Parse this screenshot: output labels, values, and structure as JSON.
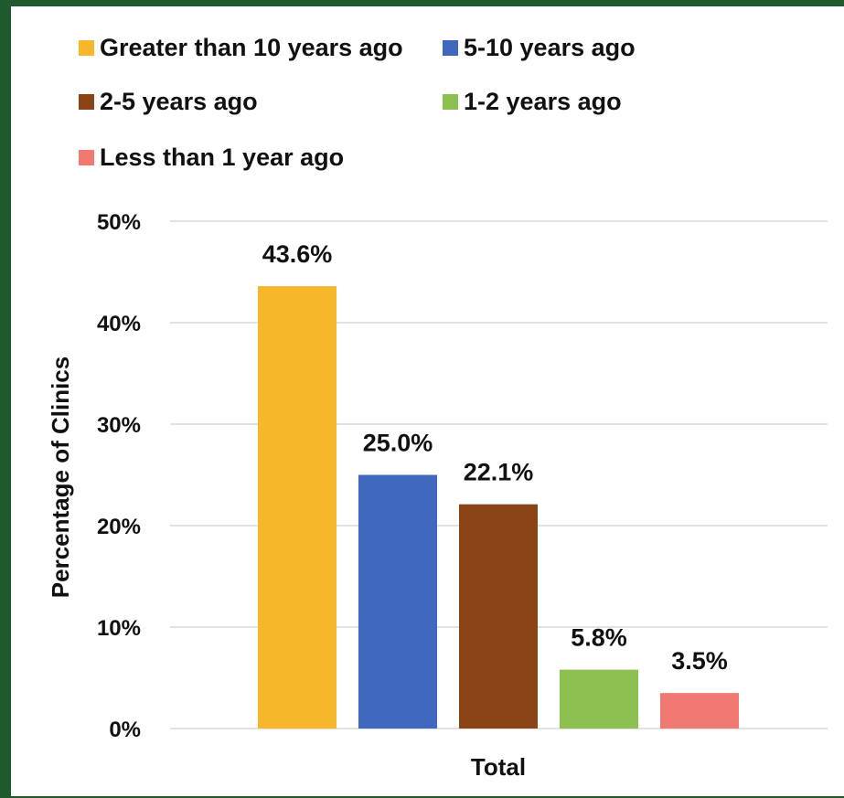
{
  "chart_data": {
    "type": "bar",
    "categories": [
      "Total"
    ],
    "series": [
      {
        "name": "Greater than 10 years ago",
        "values": [
          43.6
        ],
        "label": "43.6%",
        "color": "#f6b72a"
      },
      {
        "name": "5-10 years ago",
        "values": [
          25.0
        ],
        "label": "25.0%",
        "color": "#4168bf"
      },
      {
        "name": "2-5 years ago",
        "values": [
          22.1
        ],
        "label": "22.1%",
        "color": "#8b4416"
      },
      {
        "name": "1-2 years ago",
        "values": [
          5.8
        ],
        "label": "5.8%",
        "color": "#8cc152"
      },
      {
        "name": "Less than 1 year ago",
        "values": [
          3.5
        ],
        "label": "3.5%",
        "color": "#f07a72"
      }
    ],
    "ylabel": "Percentage of Clinics",
    "xlabel": "Total",
    "ylim": [
      0,
      50
    ],
    "yticks": [
      "0%",
      "10%",
      "20%",
      "30%",
      "40%",
      "50%"
    ],
    "grid": true,
    "legend_position": "top"
  }
}
